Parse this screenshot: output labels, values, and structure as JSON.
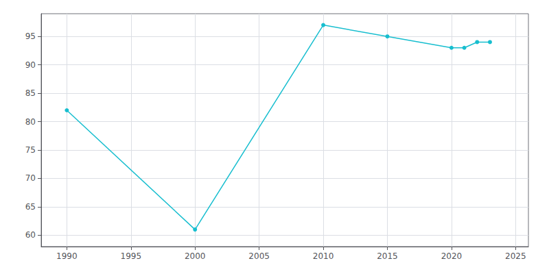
{
  "chart_data": {
    "type": "line",
    "x": [
      1990,
      2000,
      2010,
      2015,
      2020,
      2021,
      2022,
      2023
    ],
    "values": [
      82,
      61,
      97,
      95,
      93,
      93,
      94,
      94
    ],
    "color": "#17becf",
    "marker": "circle",
    "xlim": [
      1988,
      2026
    ],
    "ylim": [
      58,
      99
    ],
    "xticks": [
      1990,
      1995,
      2000,
      2005,
      2010,
      2015,
      2020,
      2025
    ],
    "yticks": [
      60,
      65,
      70,
      75,
      80,
      85,
      90,
      95
    ],
    "grid": true
  }
}
